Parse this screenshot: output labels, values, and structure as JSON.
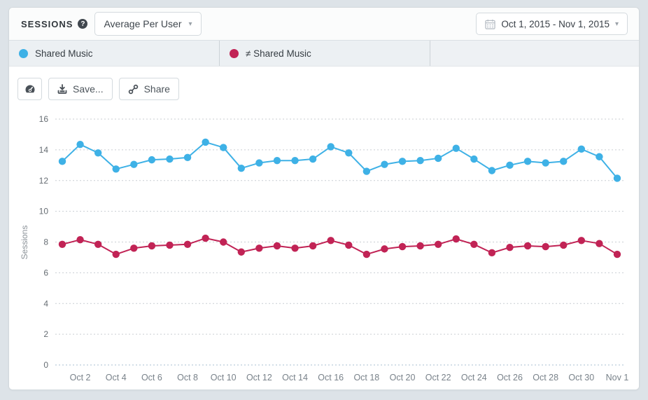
{
  "header": {
    "title": "SESSIONS",
    "help_icon": "?",
    "metric_dropdown": {
      "value": "Average Per User",
      "caret": "▾"
    },
    "date_range": {
      "value": "Oct 1, 2015 - Nov 1, 2015",
      "caret": "▾"
    }
  },
  "legend": {
    "series": [
      {
        "label": "Shared Music",
        "color": "#3eb1e6"
      },
      {
        "label": "≠ Shared Music",
        "color": "#c12355"
      }
    ]
  },
  "toolbar": {
    "gauge_icon": "gauge-icon",
    "save_label": "Save...",
    "share_label": "Share"
  },
  "colors": {
    "blue_series": "#3eb1e6",
    "red_series": "#c12355",
    "gridline": "#c9ced2",
    "zero_line": "#a7bfd0",
    "axis_text": "#666d73",
    "x_label_text": "#79828a"
  },
  "chart_data": {
    "type": "line",
    "title": "",
    "xlabel": "",
    "ylabel": "Sessions",
    "ylim": [
      0,
      16
    ],
    "ytick_step": 2,
    "grid": "horizontal-dotted",
    "legend_position": "top-tabs",
    "x": [
      "Oct 1",
      "Oct 2",
      "Oct 3",
      "Oct 4",
      "Oct 5",
      "Oct 6",
      "Oct 7",
      "Oct 8",
      "Oct 9",
      "Oct 10",
      "Oct 11",
      "Oct 12",
      "Oct 13",
      "Oct 14",
      "Oct 15",
      "Oct 16",
      "Oct 17",
      "Oct 18",
      "Oct 19",
      "Oct 20",
      "Oct 21",
      "Oct 22",
      "Oct 23",
      "Oct 24",
      "Oct 25",
      "Oct 26",
      "Oct 27",
      "Oct 28",
      "Oct 29",
      "Oct 30",
      "Oct 31",
      "Nov 1"
    ],
    "xtick_labels": [
      "Oct 2",
      "Oct 4",
      "Oct 6",
      "Oct 8",
      "Oct 10",
      "Oct 12",
      "Oct 14",
      "Oct 16",
      "Oct 18",
      "Oct 20",
      "Oct 22",
      "Oct 24",
      "Oct 26",
      "Oct 28",
      "Oct 30",
      "Nov 1"
    ],
    "series": [
      {
        "name": "Shared Music",
        "color": "#3eb1e6",
        "values": [
          13.25,
          14.35,
          13.8,
          12.75,
          13.05,
          13.35,
          13.4,
          13.5,
          14.5,
          14.15,
          12.8,
          13.15,
          13.3,
          13.3,
          13.4,
          14.2,
          13.8,
          12.6,
          13.05,
          13.25,
          13.3,
          13.45,
          14.1,
          13.4,
          12.65,
          13.0,
          13.25,
          13.15,
          13.25,
          14.05,
          13.55,
          12.15
        ]
      },
      {
        "name": "≠ Shared Music",
        "color": "#c12355",
        "values": [
          7.85,
          8.15,
          7.85,
          7.2,
          7.6,
          7.75,
          7.8,
          7.85,
          8.25,
          8.0,
          7.35,
          7.6,
          7.75,
          7.6,
          7.75,
          8.1,
          7.8,
          7.2,
          7.55,
          7.7,
          7.75,
          7.85,
          8.2,
          7.85,
          7.3,
          7.65,
          7.75,
          7.7,
          7.8,
          8.1,
          7.9,
          7.2
        ]
      }
    ]
  }
}
